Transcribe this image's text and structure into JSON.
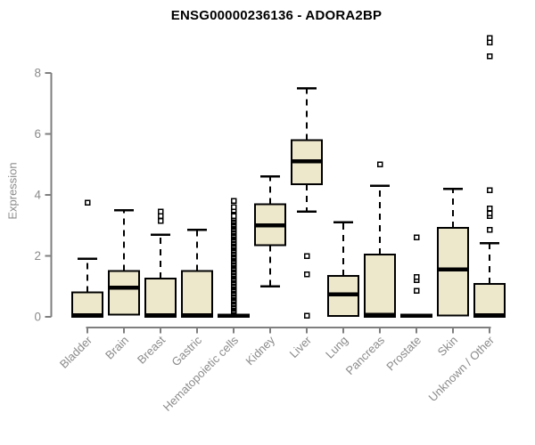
{
  "title": "ENSG00000236136 - ADORA2BP",
  "chart_data": {
    "type": "boxplot",
    "title": "ENSG00000236136 - ADORA2BP",
    "xlabel": "",
    "ylabel": "Expression",
    "ylim": [
      0,
      9.3
    ],
    "yticks": [
      0,
      2,
      4,
      6,
      8
    ],
    "grid": false,
    "legend": "none",
    "box_fill": "#EDE7CB",
    "box_stroke": "#000000",
    "axis_color": "#7f7f7f",
    "label_color": "#8b8b8b",
    "categories": [
      "Bladder",
      "Brain",
      "Breast",
      "Gastric",
      "Hematopoietic cells",
      "Kidney",
      "Liver",
      "Lung",
      "Pancreas",
      "Prostate",
      "Skin",
      "Unknown / Other"
    ],
    "boxes": [
      {
        "category": "Bladder",
        "whisker_low": 0,
        "q1": 0,
        "median": 0.05,
        "q3": 0.8,
        "whisker_high": 1.9,
        "outliers": [
          3.75
        ]
      },
      {
        "category": "Brain",
        "whisker_low": 0,
        "q1": 0.07,
        "median": 0.95,
        "q3": 1.5,
        "whisker_high": 3.5,
        "outliers": []
      },
      {
        "category": "Breast",
        "whisker_low": 0,
        "q1": 0,
        "median": 0.05,
        "q3": 1.25,
        "whisker_high": 2.7,
        "outliers": [
          3.15,
          3.3,
          3.45
        ]
      },
      {
        "category": "Gastric",
        "whisker_low": 0,
        "q1": 0,
        "median": 0.05,
        "q3": 1.5,
        "whisker_high": 2.85,
        "outliers": []
      },
      {
        "category": "Hematopoietic cells",
        "whisker_low": 0,
        "q1": 0,
        "median": 0.04,
        "q3": 0.08,
        "whisker_high": 0.08,
        "outliers": [
          0.15,
          0.2,
          0.25,
          0.3,
          0.35,
          0.4,
          0.45,
          0.5,
          0.55,
          0.6,
          0.65,
          0.7,
          0.75,
          0.8,
          0.85,
          0.9,
          0.95,
          1.0,
          1.05,
          1.1,
          1.15,
          1.2,
          1.25,
          1.3,
          1.35,
          1.4,
          1.45,
          1.5,
          1.55,
          1.6,
          1.65,
          1.7,
          1.75,
          1.8,
          1.85,
          1.9,
          1.95,
          2.0,
          2.05,
          2.1,
          2.15,
          2.2,
          2.25,
          2.3,
          2.35,
          2.4,
          2.45,
          2.5,
          2.55,
          2.6,
          2.65,
          2.7,
          2.75,
          2.8,
          2.85,
          2.9,
          2.95,
          3.0,
          3.05,
          3.1,
          3.15,
          3.2,
          3.25,
          3.3,
          3.5,
          3.6,
          3.8
        ]
      },
      {
        "category": "Kidney",
        "whisker_low": 1.0,
        "q1": 2.35,
        "median": 3.0,
        "q3": 3.7,
        "whisker_high": 4.6,
        "outliers": []
      },
      {
        "category": "Liver",
        "whisker_low": 3.45,
        "q1": 4.35,
        "median": 5.1,
        "q3": 5.8,
        "whisker_high": 7.5,
        "outliers": [
          2.0,
          1.4,
          0.03
        ]
      },
      {
        "category": "Lung",
        "whisker_low": 0,
        "q1": 0.03,
        "median": 0.73,
        "q3": 1.35,
        "whisker_high": 3.1,
        "outliers": []
      },
      {
        "category": "Pancreas",
        "whisker_low": 0,
        "q1": 0,
        "median": 0.07,
        "q3": 2.05,
        "whisker_high": 4.3,
        "outliers": [
          5.0
        ]
      },
      {
        "category": "Prostate",
        "whisker_low": 0,
        "q1": 0,
        "median": 0.04,
        "q3": 0.08,
        "whisker_high": 0.08,
        "outliers": [
          0.85,
          1.2,
          1.3,
          2.6
        ]
      },
      {
        "category": "Skin",
        "whisker_low": 0,
        "q1": 0.05,
        "median": 1.55,
        "q3": 2.92,
        "whisker_high": 4.2,
        "outliers": []
      },
      {
        "category": "Unknown / Other",
        "whisker_low": 0,
        "q1": 0,
        "median": 0.05,
        "q3": 1.08,
        "whisker_high": 2.42,
        "outliers": [
          2.86,
          3.3,
          3.4,
          3.55,
          4.15,
          8.55,
          9.0,
          9.15
        ]
      }
    ]
  }
}
